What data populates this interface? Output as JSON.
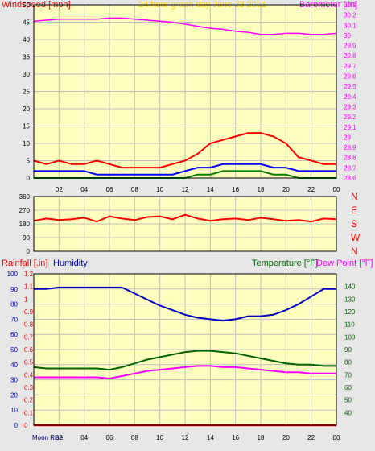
{
  "colors": {
    "background": "#e7e7e7",
    "plot_bg": "#ffffbf",
    "grid": "#bfbfbf",
    "tick_color": "#000000",
    "windspeed": "#ff0000",
    "wind_gust": "#ff0000",
    "wind_avg": "#0000ff",
    "wind_low": "#008000",
    "barometer": "#ff00ff",
    "humidity": "#0000c0",
    "temperature": "#006400",
    "dew_point": "#ff00ff",
    "rainfall": "#ff0000",
    "title": "#ffd000"
  },
  "chart_data": [
    {
      "type": "line",
      "title": "24 hour graph day   June 23 2021",
      "left_label": "Windspeed [mph]",
      "right_label": "Barometer [.in]",
      "ylim_left": [
        0,
        50
      ],
      "yticks_left": [
        "0",
        "5",
        "10",
        "15",
        "20",
        "25",
        "30",
        "35",
        "40",
        "45",
        "50"
      ],
      "ylim_right": [
        28.6,
        30.3
      ],
      "yticks_right": [
        "28.6",
        "28.7",
        "28.8",
        "28.9",
        "29",
        "29.1",
        "29.2",
        "29.3",
        "29.4",
        "29.5",
        "29.6",
        "29.7",
        "29.8",
        "29.9",
        "30",
        "30.1",
        "30.2",
        "30.3"
      ],
      "xticks": [
        "02",
        "04",
        "06",
        "08",
        "10",
        "12",
        "14",
        "16",
        "18",
        "20",
        "22",
        "00"
      ],
      "grid": true,
      "series": [
        {
          "key": "gust",
          "color_key": "wind_gust",
          "axis": "left",
          "x": [
            0,
            1,
            2,
            3,
            4,
            5,
            6,
            7,
            8,
            9,
            10,
            11,
            12,
            13,
            14,
            15,
            16,
            17,
            18,
            19,
            20,
            21,
            22,
            23,
            24
          ],
          "y": [
            5,
            4,
            5,
            4,
            4,
            5,
            4,
            3,
            3,
            3,
            3,
            4,
            5,
            7,
            10,
            11,
            12,
            13,
            13,
            12,
            10,
            6,
            5,
            4,
            4
          ]
        },
        {
          "key": "avg",
          "color_key": "wind_avg",
          "axis": "left",
          "x": [
            0,
            1,
            2,
            3,
            4,
            5,
            6,
            7,
            8,
            9,
            10,
            11,
            12,
            13,
            14,
            15,
            16,
            17,
            18,
            19,
            20,
            21,
            22,
            23,
            24
          ],
          "y": [
            2,
            2,
            2,
            2,
            2,
            1,
            1,
            1,
            1,
            1,
            1,
            1,
            2,
            3,
            3,
            4,
            4,
            4,
            4,
            3,
            3,
            2,
            2,
            2,
            2
          ]
        },
        {
          "key": "low",
          "color_key": "wind_low",
          "axis": "left",
          "x": [
            0,
            1,
            2,
            3,
            4,
            5,
            6,
            7,
            8,
            9,
            10,
            11,
            12,
            13,
            14,
            15,
            16,
            17,
            18,
            19,
            20,
            21,
            22,
            23,
            24
          ],
          "y": [
            0,
            0,
            0,
            0,
            0,
            0,
            0,
            0,
            0,
            0,
            0,
            0,
            0,
            1,
            1,
            2,
            2,
            2,
            2,
            1,
            1,
            0,
            0,
            0,
            0
          ]
        },
        {
          "key": "barometer",
          "color_key": "barometer",
          "axis": "right",
          "x": [
            0,
            1,
            2,
            3,
            4,
            5,
            6,
            7,
            8,
            9,
            10,
            11,
            12,
            13,
            14,
            15,
            16,
            17,
            18,
            19,
            20,
            21,
            22,
            23,
            24
          ],
          "y": [
            30.14,
            30.15,
            30.16,
            30.16,
            30.16,
            30.16,
            30.17,
            30.17,
            30.16,
            30.15,
            30.14,
            30.13,
            30.11,
            30.09,
            30.07,
            30.06,
            30.04,
            30.03,
            30.01,
            30.01,
            30.02,
            30.02,
            30.01,
            30.01,
            30.02
          ]
        }
      ]
    },
    {
      "type": "line",
      "left_label": "",
      "ylim": [
        0,
        360
      ],
      "yticks": [
        "0",
        "90",
        "180",
        "270",
        "360"
      ],
      "right_labels": [
        "N",
        "W",
        "S",
        "E",
        "N"
      ],
      "xticks": [],
      "grid": true,
      "series": [
        {
          "key": "direction",
          "color_key": "windspeed",
          "x": [
            0,
            1,
            2,
            3,
            4,
            5,
            6,
            7,
            8,
            9,
            10,
            11,
            12,
            13,
            14,
            15,
            16,
            17,
            18,
            19,
            20,
            21,
            22,
            23,
            24
          ],
          "y": [
            200,
            215,
            205,
            210,
            220,
            195,
            230,
            215,
            205,
            225,
            230,
            210,
            240,
            215,
            200,
            210,
            215,
            205,
            220,
            210,
            200,
            205,
            195,
            215,
            210
          ]
        }
      ]
    },
    {
      "type": "line",
      "left_label": "Rainfall [.in]",
      "left_label2": "Humidity",
      "right_label": "Temperature [°F]",
      "right_label2": "Dew Point [°F]",
      "ylim_humidity": [
        0,
        100
      ],
      "yticks_humidity": [
        "0",
        "10",
        "20",
        "30",
        "40",
        "50",
        "60",
        "70",
        "80",
        "90",
        "100"
      ],
      "ylim_rain": [
        0,
        1.2
      ],
      "yticks_rain": [
        "0",
        "0.1",
        "0.2",
        "0.3",
        "0.4",
        "0.5",
        "0.6",
        "0.7",
        "0.8",
        "0.9",
        "1",
        "1.1",
        "1.2"
      ],
      "ylim_temp": [
        30,
        150
      ],
      "yticks_temp": [
        "40",
        "50",
        "60",
        "70",
        "80",
        "90",
        "100",
        "110",
        "120",
        "130",
        "140"
      ],
      "xticks": [
        "02",
        "04",
        "06",
        "08",
        "10",
        "12",
        "14",
        "16",
        "18",
        "20",
        "22",
        "00"
      ],
      "xlabel_moon": "Moon Rise",
      "grid": true,
      "series": [
        {
          "key": "humidity",
          "color_key": "humidity",
          "axis": "humidity",
          "x": [
            0,
            1,
            2,
            3,
            4,
            5,
            6,
            7,
            8,
            9,
            10,
            11,
            12,
            13,
            14,
            15,
            16,
            17,
            18,
            19,
            20,
            21,
            22,
            23,
            24
          ],
          "y": [
            90,
            90,
            91,
            91,
            91,
            91,
            91,
            91,
            87,
            83,
            79,
            76,
            73,
            71,
            70,
            69,
            70,
            72,
            72,
            73,
            76,
            80,
            85,
            90,
            90
          ]
        },
        {
          "key": "temperature",
          "color_key": "temperature",
          "axis": "temp",
          "x": [
            0,
            1,
            2,
            3,
            4,
            5,
            6,
            7,
            8,
            9,
            10,
            11,
            12,
            13,
            14,
            15,
            16,
            17,
            18,
            19,
            20,
            21,
            22,
            23,
            24
          ],
          "y": [
            76,
            75,
            75,
            75,
            75,
            75,
            74,
            76,
            79,
            82,
            84,
            86,
            88,
            89,
            89,
            88,
            87,
            85,
            83,
            81,
            79,
            78,
            78,
            77,
            77
          ]
        },
        {
          "key": "dew_point",
          "color_key": "dew_point",
          "axis": "temp",
          "x": [
            0,
            1,
            2,
            3,
            4,
            5,
            6,
            7,
            8,
            9,
            10,
            11,
            12,
            13,
            14,
            15,
            16,
            17,
            18,
            19,
            20,
            21,
            22,
            23,
            24
          ],
          "y": [
            68,
            68,
            68,
            68,
            68,
            68,
            67,
            69,
            71,
            73,
            74,
            75,
            76,
            77,
            77,
            76,
            76,
            75,
            74,
            73,
            72,
            72,
            71,
            71,
            71
          ]
        },
        {
          "key": "rainfall",
          "color_key": "rainfall",
          "axis": "rain",
          "x": [
            0,
            24
          ],
          "y": [
            0,
            0
          ]
        }
      ]
    }
  ]
}
